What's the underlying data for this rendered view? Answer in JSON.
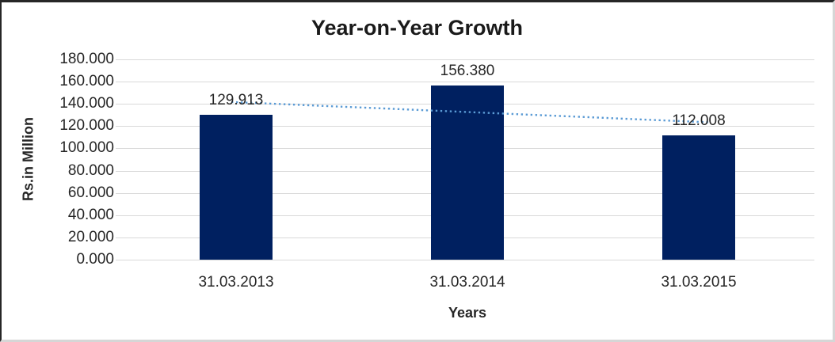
{
  "chart_data": {
    "type": "bar",
    "title": "Year-on-Year Growth",
    "xlabel": "Years",
    "ylabel": "Rs.in Million",
    "categories": [
      "31.03.2013",
      "31.03.2014",
      "31.03.2015"
    ],
    "values": [
      129.913,
      156.38,
      112.008
    ],
    "data_labels": [
      "129.913",
      "156.380",
      "112.008"
    ],
    "ylim": [
      0,
      180
    ],
    "ytick_step": 20,
    "ytick_labels": [
      "0.000",
      "20.000",
      "40.000",
      "60.000",
      "80.000",
      "100.000",
      "120.000",
      "140.000",
      "160.000",
      "180.000"
    ],
    "grid": true,
    "legend": "none",
    "bar_color": "#002060",
    "gridline_color": "#d9d9d9",
    "text_color": "#262626",
    "trendline": {
      "type": "linear",
      "style": "dotted",
      "color": "#5b9bd5"
    }
  }
}
